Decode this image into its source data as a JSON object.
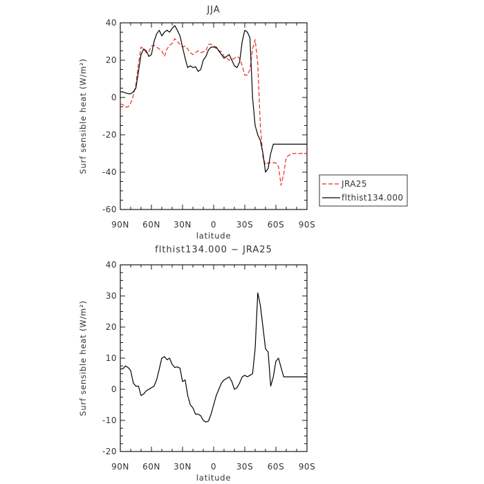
{
  "chart_data": [
    {
      "type": "line",
      "title": "JJA",
      "xlabel": "latitude",
      "ylabel": "Surf sensible heat (W/m²)",
      "xlim": [
        90,
        -90
      ],
      "ylim": [
        -60,
        40
      ],
      "x_tick_labels": [
        "90N",
        "60N",
        "30N",
        "0",
        "30S",
        "60S",
        "90S"
      ],
      "y_ticks": [
        -60,
        -40,
        -20,
        0,
        20,
        40
      ],
      "legend": {
        "position": "right",
        "entries": [
          "JRA25",
          "flthist134.000"
        ]
      },
      "series": [
        {
          "name": "JRA25",
          "color": "#e8281e",
          "dash": "dashed",
          "x": [
            90,
            87.5,
            85,
            82.5,
            80,
            77.5,
            75,
            72.5,
            70,
            67.5,
            65,
            62.5,
            60,
            57.5,
            55,
            52.5,
            50,
            47.5,
            45,
            42.5,
            40,
            37.5,
            35,
            32.5,
            30,
            27.5,
            25,
            22.5,
            20,
            17.5,
            15,
            12.5,
            10,
            7.5,
            5,
            2.5,
            0,
            -2.5,
            -5,
            -7.5,
            -10,
            -12.5,
            -15,
            -17.5,
            -20,
            -22.5,
            -25,
            -27.5,
            -30,
            -32.5,
            -35,
            -37.5,
            -40,
            -42.5,
            -45,
            -47.5,
            -50,
            -52.5,
            -55,
            -57.5,
            -60,
            -62.5,
            -65,
            -67.5,
            -70,
            -72.5,
            -75,
            -77.5,
            -80,
            -82.5,
            -85,
            -87.5,
            -90
          ],
          "y": [
            -3.5,
            -3.8,
            -5.2,
            -5,
            -3,
            1,
            7,
            18,
            27,
            26,
            24,
            24.5,
            27.5,
            28,
            27,
            26,
            25,
            22,
            26,
            28,
            29,
            31.5,
            30,
            28.5,
            27,
            27.5,
            26,
            24,
            23,
            24,
            25,
            24,
            24.5,
            25,
            28.5,
            28.5,
            28,
            26,
            25,
            24.5,
            22,
            21,
            20,
            20.5,
            21,
            22,
            21,
            17,
            12,
            12,
            15,
            26,
            31,
            18,
            -15,
            -32,
            -36,
            -35,
            -35,
            -35,
            -35,
            -37,
            -47,
            -41,
            -32,
            -31,
            -30,
            -30,
            -30,
            -30,
            -30,
            -30,
            -30
          ]
        },
        {
          "name": "flthist134.000",
          "color": "#000000",
          "dash": "solid",
          "x": [
            90,
            87.5,
            85,
            82.5,
            80,
            77.5,
            75,
            72.5,
            70,
            67.5,
            65,
            62.5,
            60,
            57.5,
            55,
            52.5,
            50,
            47.5,
            45,
            42.5,
            40,
            37.5,
            35,
            32.5,
            30,
            27.5,
            25,
            22.5,
            20,
            17.5,
            15,
            12.5,
            10,
            7.5,
            5,
            2.5,
            0,
            -2.5,
            -5,
            -7.5,
            -10,
            -12.5,
            -15,
            -17.5,
            -20,
            -22.5,
            -25,
            -27.5,
            -30,
            -32.5,
            -35,
            -37.5,
            -40,
            -42.5,
            -45,
            -47.5,
            -50,
            -52.5,
            -55,
            -57.5,
            -60,
            -62.5,
            -65,
            -67.5,
            -70,
            -72.5,
            -75,
            -77.5,
            -80,
            -82.5,
            -85,
            -87.5,
            -90
          ],
          "y": [
            3,
            3,
            2.5,
            2,
            2,
            3,
            5,
            14,
            23,
            26,
            25,
            22,
            23,
            30,
            34,
            36,
            33,
            35,
            36,
            35,
            37,
            38.5,
            36,
            33,
            27,
            21,
            16,
            17,
            16,
            16.5,
            14,
            15,
            20,
            22,
            25.5,
            27,
            27,
            27,
            25,
            23,
            21,
            22,
            23,
            20,
            17,
            16,
            19,
            30,
            36,
            35,
            32,
            0,
            -15,
            -20,
            -23,
            -30,
            -40,
            -38,
            -30,
            -25,
            -25,
            -25,
            -25,
            -25,
            -25,
            -25,
            -25,
            -25,
            -25,
            -25,
            -25,
            -25,
            -25
          ]
        }
      ]
    },
    {
      "type": "line",
      "title": "flthist134.000 − JRA25",
      "xlabel": "latitude",
      "ylabel": "Surf sensible heat (W/m²)",
      "xlim": [
        90,
        -90
      ],
      "ylim": [
        -20,
        40
      ],
      "x_tick_labels": [
        "90N",
        "60N",
        "30N",
        "0",
        "30S",
        "60S",
        "90S"
      ],
      "y_ticks": [
        -20,
        -10,
        0,
        10,
        20,
        30,
        40
      ],
      "series": [
        {
          "color": "#000000",
          "x": [
            90,
            87.5,
            85,
            82.5,
            80,
            77.5,
            75,
            72.5,
            70,
            67.5,
            65,
            62.5,
            60,
            57.5,
            55,
            52.5,
            50,
            47.5,
            45,
            42.5,
            40,
            37.5,
            35,
            32.5,
            30,
            27.5,
            25,
            22.5,
            20,
            17.5,
            15,
            12.5,
            10,
            7.5,
            5,
            2.5,
            0,
            -2.5,
            -5,
            -7.5,
            -10,
            -12.5,
            -15,
            -17.5,
            -20,
            -22.5,
            -25,
            -27.5,
            -30,
            -32.5,
            -35,
            -37.5,
            -40,
            -42.5,
            -45,
            -47.5,
            -50,
            -52.5,
            -55,
            -57.5,
            -60,
            -62.5,
            -65,
            -67.5,
            -70,
            -72.5,
            -75,
            -77.5,
            -80,
            -82.5,
            -85,
            -87.5,
            -90
          ],
          "y": [
            6.5,
            6.6,
            7.5,
            7,
            6,
            2,
            1,
            1,
            -2,
            -1.5,
            -0.5,
            0,
            0.5,
            1,
            3,
            6.5,
            10,
            10.5,
            9.5,
            10,
            8,
            7,
            7.2,
            6.8,
            2.5,
            3,
            -2,
            -5,
            -6,
            -8,
            -8,
            -8.5,
            -10,
            -10.5,
            -10.2,
            -8,
            -5,
            -2,
            0,
            2,
            3,
            3.5,
            4,
            2.5,
            0,
            0.5,
            2,
            4,
            4.5,
            4,
            4.5,
            5,
            13,
            31,
            27,
            20,
            13,
            12,
            1,
            4,
            9,
            10,
            7,
            4,
            4,
            4,
            4,
            4,
            4,
            4,
            4,
            4,
            4
          ]
        }
      ]
    }
  ]
}
